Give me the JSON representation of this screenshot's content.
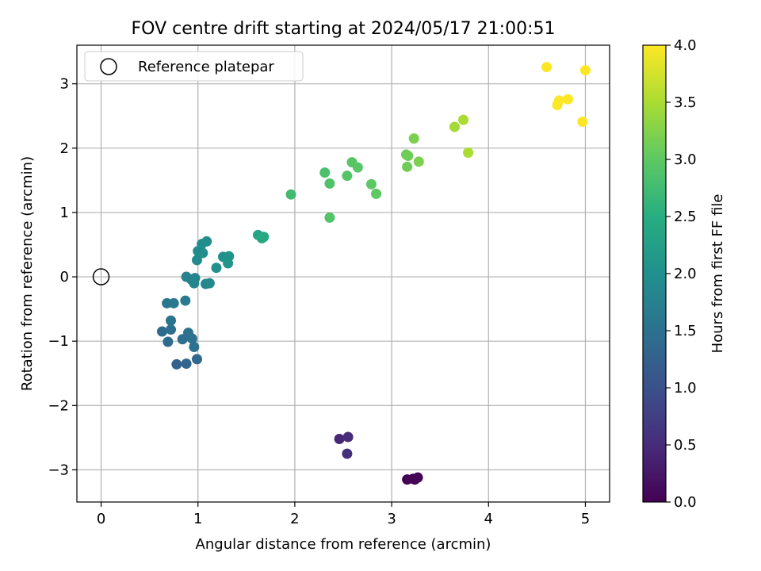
{
  "chart_data": {
    "type": "scatter",
    "title": "FOV centre drift starting at 2024/05/17 21:00:51",
    "xlabel": "Angular distance from reference (arcmin)",
    "ylabel": "Rotation from reference (arcmin)",
    "xlim": [
      -0.25,
      5.25
    ],
    "ylim": [
      -3.5,
      3.6
    ],
    "xticks": [
      0,
      1,
      2,
      3,
      4,
      5
    ],
    "yticks": [
      -3,
      -2,
      -1,
      0,
      1,
      2,
      3
    ],
    "grid": true,
    "legend": {
      "position": "upper-left",
      "entries": [
        {
          "label": "Reference platepar",
          "marker": "open-circle"
        }
      ]
    },
    "reference_point": {
      "x": 0,
      "y": 0
    },
    "colorbar": {
      "label": "Hours from first FF file",
      "colormap": "viridis",
      "range": [
        0.0,
        4.0
      ],
      "ticks": [
        "0.0",
        "0.5",
        "1.0",
        "1.5",
        "2.0",
        "2.5",
        "3.0",
        "3.5",
        "4.0"
      ]
    },
    "points": [
      {
        "x": 3.16,
        "y": -3.15,
        "c": 0.0
      },
      {
        "x": 3.24,
        "y": -3.15,
        "c": 0.02
      },
      {
        "x": 3.27,
        "y": -3.12,
        "c": 0.04
      },
      {
        "x": 3.22,
        "y": -3.14,
        "c": 0.05
      },
      {
        "x": 2.46,
        "y": -2.52,
        "c": 0.45
      },
      {
        "x": 2.55,
        "y": -2.49,
        "c": 0.5
      },
      {
        "x": 2.54,
        "y": -2.75,
        "c": 0.55
      },
      {
        "x": 0.78,
        "y": -1.36,
        "c": 1.25
      },
      {
        "x": 0.88,
        "y": -1.35,
        "c": 1.3
      },
      {
        "x": 0.99,
        "y": -1.28,
        "c": 1.35
      },
      {
        "x": 0.63,
        "y": -0.85,
        "c": 1.4
      },
      {
        "x": 0.69,
        "y": -1.01,
        "c": 1.42
      },
      {
        "x": 0.72,
        "y": -0.82,
        "c": 1.45
      },
      {
        "x": 0.84,
        "y": -0.97,
        "c": 1.45
      },
      {
        "x": 0.9,
        "y": -0.87,
        "c": 1.5
      },
      {
        "x": 0.94,
        "y": -0.96,
        "c": 1.5
      },
      {
        "x": 0.96,
        "y": -1.09,
        "c": 1.52
      },
      {
        "x": 0.72,
        "y": -0.68,
        "c": 1.55
      },
      {
        "x": 0.68,
        "y": -0.41,
        "c": 1.6
      },
      {
        "x": 0.75,
        "y": -0.41,
        "c": 1.62
      },
      {
        "x": 0.87,
        "y": -0.37,
        "c": 1.65
      },
      {
        "x": 0.88,
        "y": 0.0,
        "c": 1.75
      },
      {
        "x": 0.93,
        "y": -0.04,
        "c": 1.78
      },
      {
        "x": 0.97,
        "y": -0.02,
        "c": 1.8
      },
      {
        "x": 0.96,
        "y": -0.1,
        "c": 1.82
      },
      {
        "x": 1.08,
        "y": -0.11,
        "c": 1.85
      },
      {
        "x": 1.12,
        "y": -0.1,
        "c": 1.88
      },
      {
        "x": 0.99,
        "y": 0.26,
        "c": 1.9
      },
      {
        "x": 1.0,
        "y": 0.4,
        "c": 1.92
      },
      {
        "x": 1.05,
        "y": 0.37,
        "c": 1.93
      },
      {
        "x": 1.04,
        "y": 0.51,
        "c": 1.95
      },
      {
        "x": 1.09,
        "y": 0.55,
        "c": 1.96
      },
      {
        "x": 1.19,
        "y": 0.14,
        "c": 2.0
      },
      {
        "x": 1.26,
        "y": 0.31,
        "c": 2.02
      },
      {
        "x": 1.32,
        "y": 0.32,
        "c": 2.05
      },
      {
        "x": 1.31,
        "y": 0.21,
        "c": 2.08
      },
      {
        "x": 1.62,
        "y": 0.65,
        "c": 2.35
      },
      {
        "x": 1.66,
        "y": 0.6,
        "c": 2.4
      },
      {
        "x": 1.68,
        "y": 0.62,
        "c": 2.42
      },
      {
        "x": 1.96,
        "y": 1.28,
        "c": 2.75
      },
      {
        "x": 2.31,
        "y": 1.62,
        "c": 2.85
      },
      {
        "x": 2.36,
        "y": 1.45,
        "c": 2.88
      },
      {
        "x": 2.36,
        "y": 0.92,
        "c": 2.9
      },
      {
        "x": 2.54,
        "y": 1.57,
        "c": 2.92
      },
      {
        "x": 2.59,
        "y": 1.78,
        "c": 2.95
      },
      {
        "x": 2.65,
        "y": 1.7,
        "c": 2.97
      },
      {
        "x": 2.79,
        "y": 1.44,
        "c": 3.0
      },
      {
        "x": 2.84,
        "y": 1.29,
        "c": 3.02
      },
      {
        "x": 3.15,
        "y": 1.9,
        "c": 3.1
      },
      {
        "x": 3.17,
        "y": 1.88,
        "c": 3.12
      },
      {
        "x": 3.16,
        "y": 1.71,
        "c": 3.12
      },
      {
        "x": 3.23,
        "y": 2.15,
        "c": 3.2
      },
      {
        "x": 3.28,
        "y": 1.79,
        "c": 3.2
      },
      {
        "x": 3.65,
        "y": 2.33,
        "c": 3.45
      },
      {
        "x": 3.74,
        "y": 2.44,
        "c": 3.5
      },
      {
        "x": 3.79,
        "y": 1.93,
        "c": 3.5
      },
      {
        "x": 4.6,
        "y": 3.26,
        "c": 4.0
      },
      {
        "x": 4.71,
        "y": 2.67,
        "c": 3.98
      },
      {
        "x": 4.73,
        "y": 2.74,
        "c": 3.98
      },
      {
        "x": 4.82,
        "y": 2.76,
        "c": 4.0
      },
      {
        "x": 4.97,
        "y": 2.41,
        "c": 4.0
      },
      {
        "x": 5.0,
        "y": 3.21,
        "c": 4.0
      }
    ]
  }
}
